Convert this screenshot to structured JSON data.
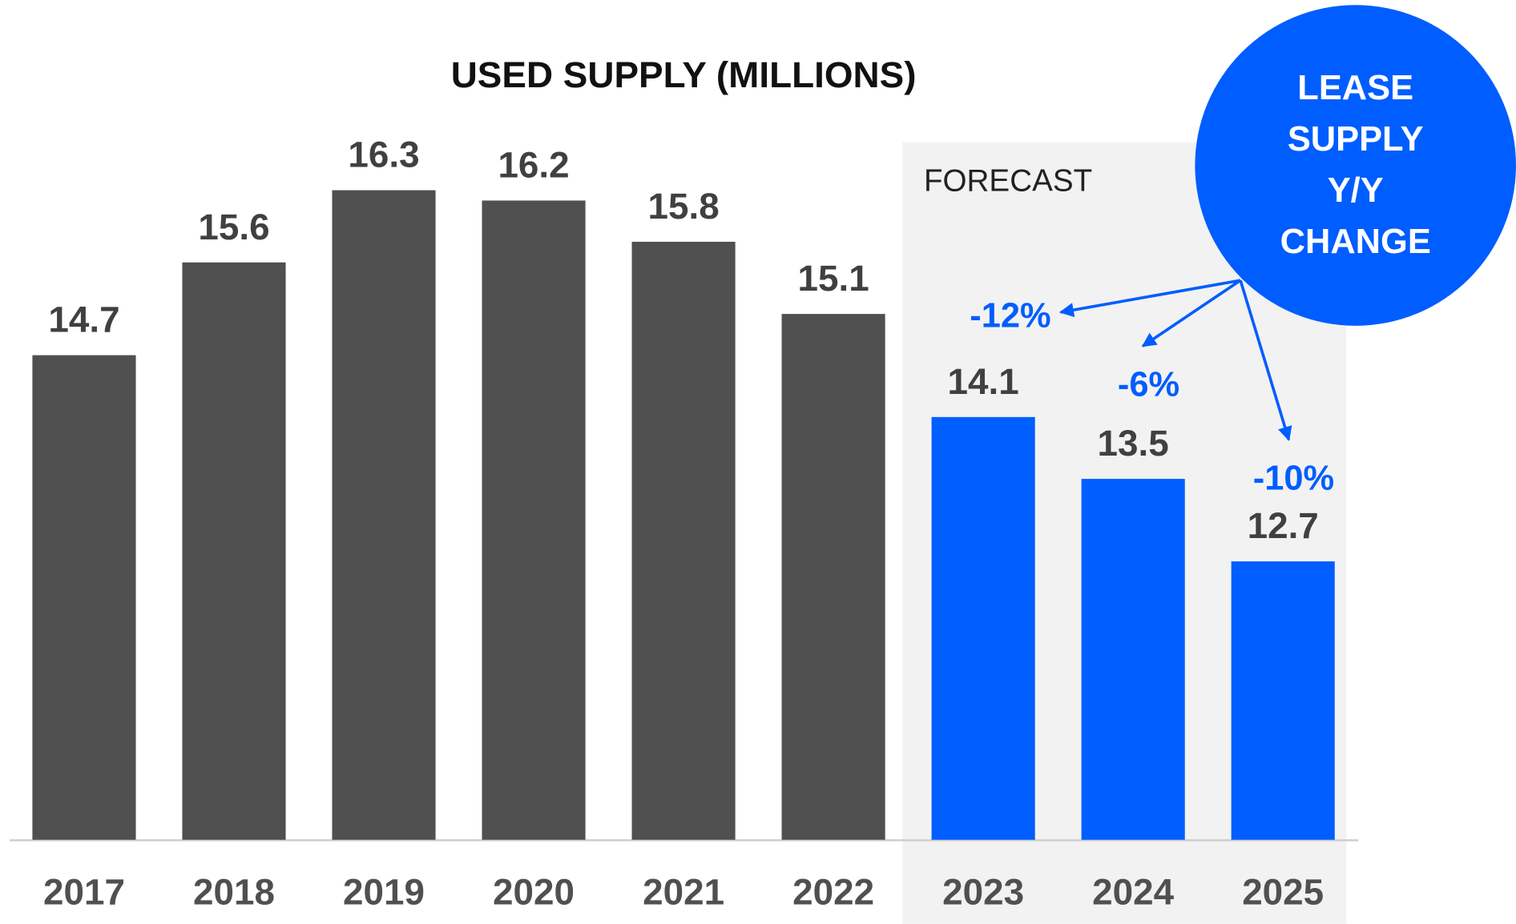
{
  "chart_data": {
    "type": "bar",
    "title": "USED SUPPLY (MILLIONS)",
    "categories": [
      "2017",
      "2018",
      "2019",
      "2020",
      "2021",
      "2022",
      "2023",
      "2024",
      "2025"
    ],
    "values": [
      14.7,
      15.6,
      16.3,
      16.2,
      15.8,
      15.1,
      14.1,
      13.5,
      12.7
    ],
    "color": "#505050",
    "forecast_color": "#005dff",
    "forecast_start": "2023",
    "forecast_label": "FORECAST",
    "ylim": [
      10,
      17
    ],
    "lease_change": {
      "label": [
        "LEASE",
        "SUPPLY",
        "Y/Y",
        "CHANGE"
      ],
      "categories": [
        "2023",
        "2024",
        "2025"
      ],
      "values": [
        -12,
        -6,
        -10
      ],
      "value_labels": [
        "-12%",
        "-6%",
        "-10%"
      ]
    }
  }
}
